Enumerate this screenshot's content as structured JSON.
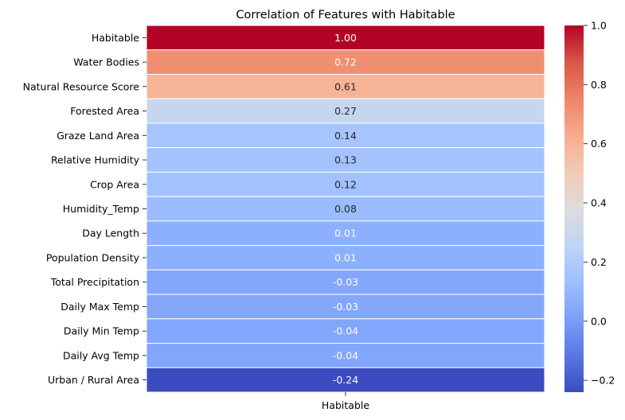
{
  "chart_data": {
    "type": "heatmap",
    "title": "Correlation of Features with Habitable",
    "columns": [
      "Habitable"
    ],
    "rows": [
      {
        "label": "Habitable",
        "value": 1.0,
        "text": "1.00",
        "color": "#b40426"
      },
      {
        "label": "Water Bodies",
        "value": 0.72,
        "text": "0.72",
        "color": "#f18f71"
      },
      {
        "label": "Natural Resource Score",
        "value": 0.61,
        "text": "0.61",
        "color": "#f7b497"
      },
      {
        "label": "Forested Area",
        "value": 0.27,
        "text": "0.27",
        "color": "#c6d6f1"
      },
      {
        "label": "Graze Land Area",
        "value": 0.14,
        "text": "0.14",
        "color": "#a7c5fe"
      },
      {
        "label": "Relative Humidity",
        "value": 0.13,
        "text": "0.13",
        "color": "#a3c2fe"
      },
      {
        "label": "Crop Area",
        "value": 0.12,
        "text": "0.12",
        "color": "#a2c1ff"
      },
      {
        "label": "Humidity_Temp",
        "value": 0.08,
        "text": "0.08",
        "color": "#9bbcff"
      },
      {
        "label": "Day Length",
        "value": 0.01,
        "text": "0.01",
        "color": "#8caffe"
      },
      {
        "label": "Population Density",
        "value": 0.01,
        "text": "0.01",
        "color": "#8caffe"
      },
      {
        "label": "Total Precipitation",
        "value": -0.03,
        "text": "-0.03",
        "color": "#84a7fc"
      },
      {
        "label": "Daily Max Temp",
        "value": -0.03,
        "text": "-0.03",
        "color": "#84a7fc"
      },
      {
        "label": "Daily Min Temp",
        "value": -0.04,
        "text": "-0.04",
        "color": "#82a6fb"
      },
      {
        "label": "Daily Avg Temp",
        "value": -0.04,
        "text": "-0.04",
        "color": "#82a6fb"
      },
      {
        "label": "Urban / Rural Area",
        "value": -0.24,
        "text": "-0.24",
        "color": "#3b4cc0"
      }
    ],
    "colorbar": {
      "colormap": "coolwarm",
      "range": [
        -0.24,
        1.0
      ],
      "ticks": [
        {
          "value": 1.0,
          "label": "1.0"
        },
        {
          "value": 0.8,
          "label": "0.8"
        },
        {
          "value": 0.6,
          "label": "0.6"
        },
        {
          "value": 0.4,
          "label": "0.4"
        },
        {
          "value": 0.2,
          "label": "0.2"
        },
        {
          "value": 0.0,
          "label": "0.0"
        },
        {
          "value": -0.2,
          "label": "−0.2"
        }
      ]
    }
  }
}
